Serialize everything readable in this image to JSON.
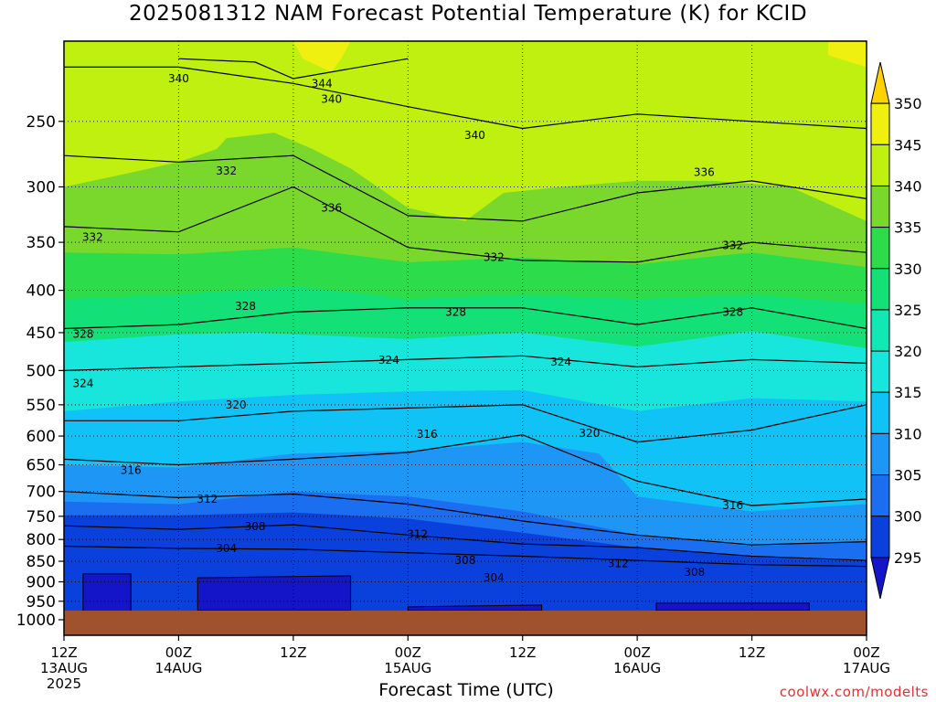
{
  "title": "2025081312 NAM Forecast Potential Temperature (K) for KCID",
  "xlabel": "Forecast Time (UTC)",
  "credit": "coolwx.com/modelts",
  "chart_data": {
    "type": "heatmap",
    "title": "2025081312 NAM Forecast Potential Temperature (K) for KCID",
    "xlabel": "Forecast Time (UTC)",
    "ylabel": "",
    "y_scale": "log-pressure",
    "y_inverted": true,
    "x_ticks": [
      {
        "line1": "12Z",
        "line2": "13AUG",
        "line3": "2025",
        "hour": 0
      },
      {
        "line1": "00Z",
        "line2": "14AUG",
        "line3": "",
        "hour": 12
      },
      {
        "line1": "12Z",
        "line2": "",
        "line3": "",
        "hour": 24
      },
      {
        "line1": "00Z",
        "line2": "15AUG",
        "line3": "",
        "hour": 36
      },
      {
        "line1": "12Z",
        "line2": "",
        "line3": "",
        "hour": 48
      },
      {
        "line1": "00Z",
        "line2": "16AUG",
        "line3": "",
        "hour": 60
      },
      {
        "line1": "12Z",
        "line2": "",
        "line3": "",
        "hour": 72
      },
      {
        "line1": "00Z",
        "line2": "17AUG",
        "line3": "",
        "hour": 84
      }
    ],
    "y_ticks": [
      250,
      300,
      350,
      400,
      450,
      500,
      550,
      600,
      650,
      700,
      750,
      800,
      850,
      900,
      950,
      1000
    ],
    "grid": true,
    "colorbar": {
      "levels": [
        295,
        300,
        305,
        310,
        315,
        320,
        325,
        330,
        335,
        340,
        345,
        350
      ],
      "colors": [
        "#1414c8",
        "#0a40dc",
        "#1b6ef0",
        "#1e96f5",
        "#10c2f5",
        "#18e6dc",
        "#12e8b4",
        "#14e078",
        "#2cdc4a",
        "#7ad82c",
        "#c0f010",
        "#f0f010",
        "#ffd200"
      ]
    },
    "contour_levels": [
      304,
      308,
      312,
      316,
      320,
      324,
      328,
      332,
      336,
      340,
      344
    ],
    "contours": [
      {
        "theta": 304,
        "points": [
          [
            0,
            815
          ],
          [
            12,
            820
          ],
          [
            24,
            822
          ],
          [
            36,
            830
          ],
          [
            48,
            838
          ],
          [
            60,
            848
          ],
          [
            72,
            858
          ],
          [
            84,
            862
          ]
        ]
      },
      {
        "theta": 308,
        "points": [
          [
            0,
            770
          ],
          [
            12,
            778
          ],
          [
            24,
            768
          ],
          [
            36,
            790
          ],
          [
            48,
            810
          ],
          [
            60,
            818
          ],
          [
            72,
            838
          ],
          [
            84,
            848
          ]
        ]
      },
      {
        "theta": 312,
        "points": [
          [
            0,
            700
          ],
          [
            12,
            712
          ],
          [
            24,
            705
          ],
          [
            36,
            725
          ],
          [
            48,
            760
          ],
          [
            60,
            790
          ],
          [
            72,
            812
          ],
          [
            84,
            805
          ]
        ]
      },
      {
        "theta": 316,
        "points": [
          [
            0,
            640
          ],
          [
            12,
            650
          ],
          [
            24,
            640
          ],
          [
            36,
            628
          ],
          [
            48,
            598
          ],
          [
            60,
            680
          ],
          [
            72,
            728
          ],
          [
            84,
            715
          ]
        ]
      },
      {
        "theta": 320,
        "points": [
          [
            0,
            575
          ],
          [
            12,
            575
          ],
          [
            24,
            560
          ],
          [
            36,
            555
          ],
          [
            48,
            550
          ],
          [
            60,
            610
          ],
          [
            72,
            590
          ],
          [
            84,
            550
          ]
        ]
      },
      {
        "theta": 324,
        "points": [
          [
            0,
            500
          ],
          [
            12,
            495
          ],
          [
            24,
            490
          ],
          [
            36,
            485
          ],
          [
            48,
            480
          ],
          [
            60,
            495
          ],
          [
            72,
            485
          ],
          [
            84,
            490
          ]
        ]
      },
      {
        "theta": 328,
        "points": [
          [
            0,
            445
          ],
          [
            12,
            440
          ],
          [
            24,
            425
          ],
          [
            36,
            420
          ],
          [
            48,
            420
          ],
          [
            60,
            440
          ],
          [
            72,
            420
          ],
          [
            84,
            445
          ]
        ]
      },
      {
        "theta": 332,
        "points": [
          [
            0,
            335
          ],
          [
            12,
            340
          ],
          [
            24,
            300
          ],
          [
            36,
            355
          ],
          [
            48,
            368
          ],
          [
            60,
            370
          ],
          [
            72,
            350
          ],
          [
            84,
            360
          ]
        ]
      },
      {
        "theta": 336,
        "points": [
          [
            0,
            275
          ],
          [
            12,
            280
          ],
          [
            24,
            275
          ],
          [
            36,
            325
          ],
          [
            48,
            330
          ],
          [
            60,
            305
          ],
          [
            72,
            295
          ],
          [
            84,
            310
          ]
        ]
      },
      {
        "theta": 340,
        "points": [
          [
            0,
            215
          ],
          [
            12,
            215
          ],
          [
            24,
            225
          ],
          [
            36,
            240
          ],
          [
            48,
            255
          ],
          [
            60,
            245
          ],
          [
            72,
            250
          ],
          [
            84,
            255
          ]
        ]
      },
      {
        "theta": 344,
        "points": [
          [
            12,
            210
          ],
          [
            20,
            212
          ],
          [
            24,
            222
          ],
          [
            36,
            210
          ]
        ]
      }
    ],
    "contour_labels": [
      {
        "text": "340",
        "hour": 12,
        "p": 222
      },
      {
        "text": "344",
        "hour": 27,
        "p": 225
      },
      {
        "text": "340",
        "hour": 28,
        "p": 235
      },
      {
        "text": "340",
        "hour": 43,
        "p": 260
      },
      {
        "text": "336",
        "hour": 67,
        "p": 288
      },
      {
        "text": "332",
        "hour": 17,
        "p": 287
      },
      {
        "text": "336",
        "hour": 28,
        "p": 318
      },
      {
        "text": "332",
        "hour": 3,
        "p": 345
      },
      {
        "text": "332",
        "hour": 45,
        "p": 365
      },
      {
        "text": "332",
        "hour": 70,
        "p": 353
      },
      {
        "text": "328",
        "hour": 19,
        "p": 418
      },
      {
        "text": "328",
        "hour": 41,
        "p": 425
      },
      {
        "text": "328",
        "hour": 70,
        "p": 425
      },
      {
        "text": "328",
        "hour": 2,
        "p": 452
      },
      {
        "text": "324",
        "hour": 34,
        "p": 486
      },
      {
        "text": "324",
        "hour": 52,
        "p": 488
      },
      {
        "text": "324",
        "hour": 2,
        "p": 518
      },
      {
        "text": "320",
        "hour": 18,
        "p": 550
      },
      {
        "text": "316",
        "hour": 38,
        "p": 597
      },
      {
        "text": "320",
        "hour": 55,
        "p": 595
      },
      {
        "text": "316",
        "hour": 7,
        "p": 660
      },
      {
        "text": "312",
        "hour": 15,
        "p": 715
      },
      {
        "text": "316",
        "hour": 70,
        "p": 728
      },
      {
        "text": "308",
        "hour": 20,
        "p": 772
      },
      {
        "text": "312",
        "hour": 37,
        "p": 788
      },
      {
        "text": "304",
        "hour": 17,
        "p": 820
      },
      {
        "text": "308",
        "hour": 42,
        "p": 848
      },
      {
        "text": "312",
        "hour": 58,
        "p": 855
      },
      {
        "text": "304",
        "hour": 45,
        "p": 890
      },
      {
        "text": "308",
        "hour": 66,
        "p": 876
      }
    ],
    "fill_bands": [
      {
        "range": "345-350",
        "color": "#f0f010",
        "top": [
          [
            0,
            200
          ],
          [
            10,
            200
          ],
          [
            20,
            200
          ],
          [
            24,
            200
          ],
          [
            25,
            210
          ],
          [
            28,
            218
          ],
          [
            29,
            210
          ],
          [
            30,
            200
          ]
        ]
      },
      {
        "range": "340-345",
        "color": "#c0f010",
        "bottom": [
          [
            0,
            300
          ],
          [
            6,
            290
          ],
          [
            12,
            280
          ],
          [
            16,
            270
          ],
          [
            17,
            262
          ],
          [
            22,
            258
          ],
          [
            26,
            270
          ],
          [
            30,
            285
          ],
          [
            36,
            318
          ],
          [
            42,
            330
          ],
          [
            46,
            305
          ],
          [
            52,
            300
          ],
          [
            60,
            295
          ],
          [
            68,
            295
          ],
          [
            76,
            300
          ],
          [
            84,
            330
          ]
        ]
      },
      {
        "range": "335-340",
        "color": "#7ad82c",
        "bottom": [
          [
            0,
            360
          ],
          [
            12,
            362
          ],
          [
            24,
            355
          ],
          [
            36,
            370
          ],
          [
            48,
            365
          ],
          [
            60,
            372
          ],
          [
            72,
            360
          ],
          [
            84,
            375
          ]
        ]
      },
      {
        "range": "330-335",
        "color": "#2cdc4a",
        "bottom": [
          [
            0,
            410
          ],
          [
            12,
            405
          ],
          [
            24,
            395
          ],
          [
            36,
            410
          ],
          [
            48,
            405
          ],
          [
            60,
            410
          ],
          [
            72,
            405
          ],
          [
            84,
            415
          ]
        ]
      },
      {
        "range": "325-330",
        "color": "#14e078",
        "bottom": [
          [
            0,
            462
          ],
          [
            12,
            452
          ],
          [
            20,
            450
          ],
          [
            24,
            452
          ],
          [
            36,
            458
          ],
          [
            48,
            450
          ],
          [
            60,
            468
          ],
          [
            72,
            448
          ],
          [
            84,
            470
          ]
        ]
      },
      {
        "range": "320-325",
        "color": "#18e6dc",
        "bottom": [
          [
            0,
            560
          ],
          [
            12,
            545
          ],
          [
            24,
            535
          ],
          [
            36,
            530
          ],
          [
            48,
            528
          ],
          [
            60,
            560
          ],
          [
            72,
            540
          ],
          [
            84,
            545
          ]
        ]
      },
      {
        "range": "315-320",
        "color": "#10c2f5",
        "bottom": [
          [
            0,
            650
          ],
          [
            12,
            655
          ],
          [
            24,
            630
          ],
          [
            36,
            625
          ],
          [
            48,
            610
          ],
          [
            56,
            630
          ],
          [
            60,
            710
          ],
          [
            72,
            740
          ],
          [
            84,
            725
          ]
        ]
      },
      {
        "range": "310-315",
        "color": "#1e96f5",
        "bottom": [
          [
            0,
            720
          ],
          [
            12,
            725
          ],
          [
            24,
            700
          ],
          [
            36,
            710
          ],
          [
            48,
            740
          ],
          [
            60,
            790
          ],
          [
            72,
            815
          ],
          [
            84,
            805
          ]
        ]
      },
      {
        "range": "305-310",
        "color": "#1b6ef0",
        "bottom": [
          [
            0,
            748
          ],
          [
            12,
            748
          ],
          [
            24,
            742
          ],
          [
            36,
            755
          ],
          [
            48,
            785
          ],
          [
            60,
            818
          ],
          [
            72,
            840
          ],
          [
            84,
            850
          ]
        ]
      },
      {
        "range": "300-305",
        "color": "#0a40dc",
        "bottom": [
          [
            0,
            840
          ],
          [
            84,
            840
          ]
        ]
      },
      {
        "range": "295-300",
        "color": "#1414c8",
        "patches": [
          [
            [
              2,
              880
            ],
            [
              7,
              880
            ],
            [
              7,
              980
            ],
            [
              2,
              980
            ]
          ],
          [
            [
              14,
              890
            ],
            [
              30,
              885
            ],
            [
              30,
              975
            ],
            [
              14,
              975
            ]
          ],
          [
            [
              36,
              965
            ],
            [
              50,
              960
            ],
            [
              50,
              975
            ],
            [
              36,
              975
            ]
          ],
          [
            [
              62,
              955
            ],
            [
              78,
              955
            ],
            [
              78,
              975
            ],
            [
              62,
              975
            ]
          ]
        ]
      }
    ]
  }
}
